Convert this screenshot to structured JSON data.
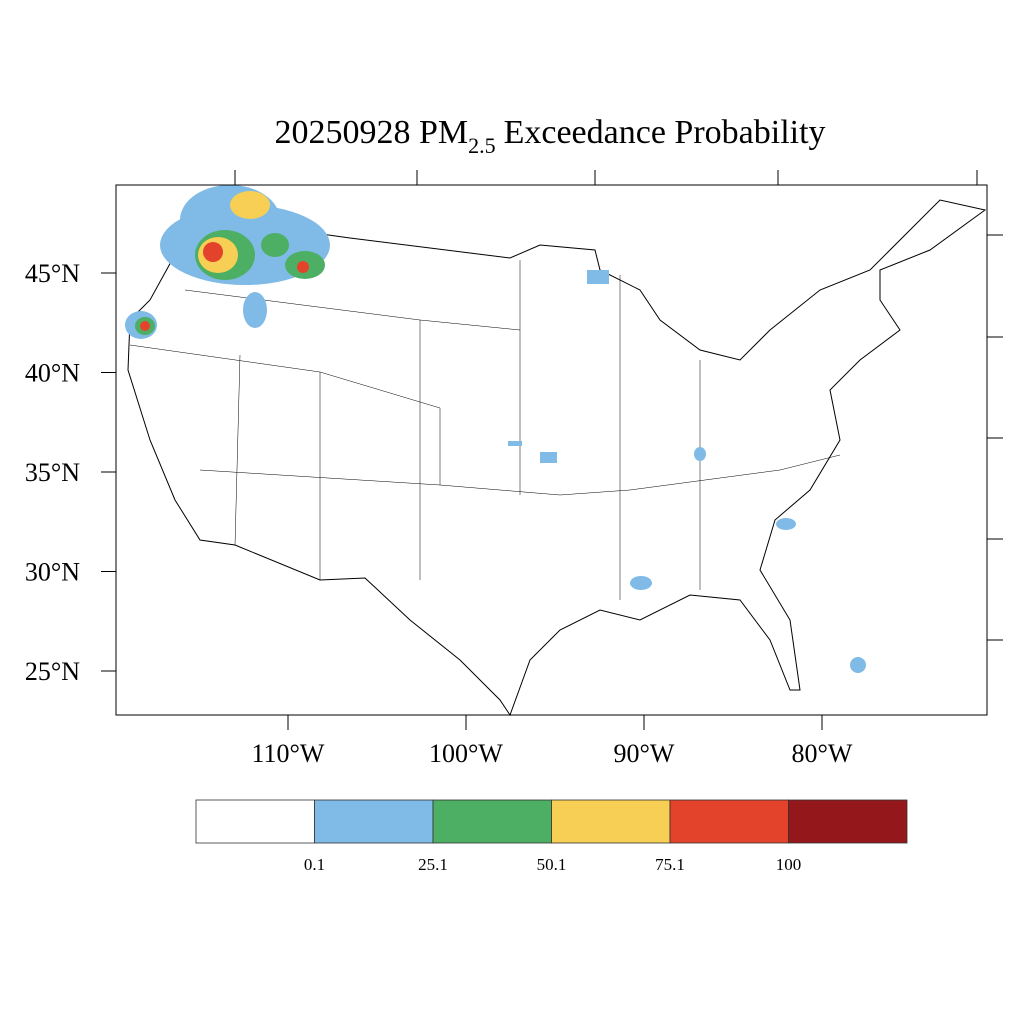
{
  "map": {
    "title": {
      "main": "20250928 PM",
      "subscript": "2.5",
      "rest": "Exceedance Probability"
    },
    "lat_ticks": [
      {
        "value": 45,
        "label": "45°N"
      },
      {
        "value": 40,
        "label": "40°N"
      },
      {
        "value": 35,
        "label": "35°N"
      },
      {
        "value": 30,
        "label": "30°N"
      },
      {
        "value": 25,
        "label": "25°N"
      }
    ],
    "lon_ticks": [
      {
        "value": -110,
        "label": "110°W"
      },
      {
        "value": -100,
        "label": "100°W"
      },
      {
        "value": -90,
        "label": "90°W"
      },
      {
        "value": -80,
        "label": "80°W"
      }
    ],
    "colorbar": {
      "colors": [
        "#ffffff",
        "#7fbbe6",
        "#4caf63",
        "#f8cf55",
        "#e4432b",
        "#94171c"
      ],
      "levels": [
        0.1,
        25.1,
        50.1,
        75.1,
        100
      ]
    }
  }
}
